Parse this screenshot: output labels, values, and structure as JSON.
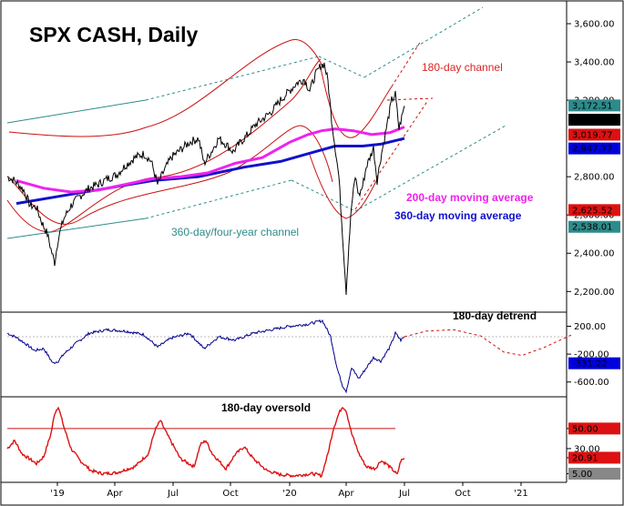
{
  "chart_data": {
    "type": "line",
    "title": "SPX CASH, Daily",
    "x_tick_labels": [
      "'19",
      "Apr",
      "Jul",
      "Oct",
      "'20",
      "Apr",
      "Jul",
      "Oct",
      "'21"
    ],
    "price_panel": {
      "y_ticks": [
        "3,600.00",
        "3,400.00",
        "3,200.00",
        "2,800.00",
        "2,600.00",
        "2,400.00",
        "2,200.00"
      ],
      "y_tick_values": [
        3600,
        3400,
        3200,
        2800,
        2600,
        2400,
        2200
      ],
      "ylim": [
        2130,
        3700
      ],
      "price_series": [
        [
          0,
          2800
        ],
        [
          8,
          2780
        ],
        [
          18,
          2730
        ],
        [
          25,
          2650
        ],
        [
          32,
          2640
        ],
        [
          38,
          2560
        ],
        [
          44,
          2500
        ],
        [
          48,
          2420
        ],
        [
          52,
          2350
        ],
        [
          56,
          2480
        ],
        [
          62,
          2580
        ],
        [
          70,
          2650
        ],
        [
          80,
          2700
        ],
        [
          90,
          2740
        ],
        [
          100,
          2760
        ],
        [
          110,
          2790
        ],
        [
          120,
          2810
        ],
        [
          130,
          2860
        ],
        [
          140,
          2900
        ],
        [
          150,
          2920
        ],
        [
          158,
          2880
        ],
        [
          165,
          2760
        ],
        [
          172,
          2830
        ],
        [
          180,
          2900
        ],
        [
          190,
          2940
        ],
        [
          200,
          2980
        ],
        [
          210,
          3000
        ],
        [
          216,
          2870
        ],
        [
          224,
          2930
        ],
        [
          232,
          3000
        ],
        [
          240,
          2970
        ],
        [
          248,
          2930
        ],
        [
          256,
          2980
        ],
        [
          264,
          3020
        ],
        [
          272,
          3070
        ],
        [
          280,
          3100
        ],
        [
          290,
          3140
        ],
        [
          300,
          3200
        ],
        [
          310,
          3250
        ],
        [
          318,
          3290
        ],
        [
          326,
          3310
        ],
        [
          332,
          3250
        ],
        [
          338,
          3330
        ],
        [
          344,
          3380
        ],
        [
          348,
          3390
        ],
        [
          352,
          3300
        ],
        [
          356,
          3100
        ],
        [
          360,
          2950
        ],
        [
          364,
          2800
        ],
        [
          368,
          2500
        ],
        [
          372,
          2200
        ],
        [
          375,
          2450
        ],
        [
          378,
          2650
        ],
        [
          382,
          2800
        ],
        [
          386,
          2700
        ],
        [
          390,
          2750
        ],
        [
          394,
          2850
        ],
        [
          398,
          2900
        ],
        [
          402,
          2950
        ],
        [
          406,
          2780
        ],
        [
          410,
          2900
        ],
        [
          414,
          3000
        ],
        [
          418,
          3100
        ],
        [
          422,
          3200
        ],
        [
          426,
          3230
        ],
        [
          430,
          3050
        ],
        [
          433,
          3110
        ],
        [
          436,
          3170
        ]
      ],
      "ma200_series": [
        [
          10,
          2780
        ],
        [
          40,
          2740
        ],
        [
          70,
          2720
        ],
        [
          100,
          2730
        ],
        [
          130,
          2760
        ],
        [
          160,
          2790
        ],
        [
          190,
          2800
        ],
        [
          220,
          2820
        ],
        [
          250,
          2870
        ],
        [
          280,
          2900
        ],
        [
          310,
          2980
        ],
        [
          330,
          3020
        ],
        [
          345,
          3040
        ],
        [
          360,
          3050
        ],
        [
          380,
          3040
        ],
        [
          400,
          3020
        ],
        [
          420,
          3030
        ],
        [
          436,
          3060
        ]
      ],
      "ma360_series": [
        [
          10,
          2660
        ],
        [
          60,
          2700
        ],
        [
          110,
          2740
        ],
        [
          160,
          2780
        ],
        [
          210,
          2800
        ],
        [
          260,
          2850
        ],
        [
          300,
          2880
        ],
        [
          330,
          2920
        ],
        [
          360,
          2960
        ],
        [
          390,
          2960
        ],
        [
          410,
          2970
        ],
        [
          436,
          3000
        ]
      ],
      "right_labels": [
        {
          "text": "3,172.51",
          "value": 3172.51,
          "color": "#2e8b8b"
        },
        {
          "text": "3,097.74",
          "value": 3097.74,
          "color": "#000000"
        },
        {
          "text": "3,019.77",
          "value": 3019.77,
          "color": "#dd1111"
        },
        {
          "text": "2,947.77",
          "value": 2947.77,
          "color": "#0000dd"
        },
        {
          "text": "2,625.52",
          "value": 2625.52,
          "color": "#dd1111"
        },
        {
          "text": "2,538.01",
          "value": 2538.01,
          "color": "#2e8b8b"
        }
      ]
    },
    "detrend_panel": {
      "label": "180-day detrend",
      "y_ticks": [
        "200.00",
        "-200.00",
        "-600.00"
      ],
      "y_tick_values": [
        200,
        -200,
        -600
      ],
      "ylim": [
        -760,
        350
      ],
      "detrend_series": [
        [
          0,
          100
        ],
        [
          10,
          40
        ],
        [
          20,
          -50
        ],
        [
          30,
          -150
        ],
        [
          40,
          -120
        ],
        [
          50,
          -330
        ],
        [
          56,
          -300
        ],
        [
          62,
          -200
        ],
        [
          75,
          -50
        ],
        [
          90,
          100
        ],
        [
          110,
          150
        ],
        [
          130,
          130
        ],
        [
          150,
          80
        ],
        [
          165,
          -100
        ],
        [
          180,
          30
        ],
        [
          200,
          100
        ],
        [
          216,
          -120
        ],
        [
          232,
          50
        ],
        [
          250,
          0
        ],
        [
          270,
          100
        ],
        [
          290,
          150
        ],
        [
          310,
          200
        ],
        [
          330,
          230
        ],
        [
          346,
          280
        ],
        [
          355,
          50
        ],
        [
          362,
          -400
        ],
        [
          368,
          -650
        ],
        [
          372,
          -730
        ],
        [
          378,
          -400
        ],
        [
          386,
          -550
        ],
        [
          394,
          -400
        ],
        [
          402,
          -250
        ],
        [
          410,
          -300
        ],
        [
          420,
          -100
        ],
        [
          426,
          100
        ],
        [
          432,
          0
        ],
        [
          436,
          50
        ]
      ],
      "projection_series": [
        [
          436,
          50
        ],
        [
          460,
          130
        ],
        [
          490,
          150
        ],
        [
          520,
          60
        ],
        [
          545,
          -170
        ],
        [
          565,
          -220
        ],
        [
          590,
          -100
        ],
        [
          620,
          80
        ]
      ],
      "right_labels": [
        {
          "text": "-331.22",
          "value": -331.22,
          "color": "#0000dd"
        }
      ]
    },
    "oversold_panel": {
      "label": "180-day oversold",
      "y_ticks": [
        "50.00",
        "30.00",
        "20.91",
        "5.00"
      ],
      "y_tick_values": [
        50,
        30,
        20.91,
        5
      ],
      "ylim": [
        0,
        78
      ],
      "threshold": 50,
      "oversold_series": [
        [
          0,
          30
        ],
        [
          8,
          38
        ],
        [
          16,
          25
        ],
        [
          24,
          20
        ],
        [
          32,
          15
        ],
        [
          40,
          22
        ],
        [
          48,
          45
        ],
        [
          52,
          65
        ],
        [
          56,
          72
        ],
        [
          62,
          52
        ],
        [
          70,
          30
        ],
        [
          80,
          18
        ],
        [
          92,
          8
        ],
        [
          105,
          5
        ],
        [
          120,
          6
        ],
        [
          140,
          12
        ],
        [
          155,
          25
        ],
        [
          162,
          48
        ],
        [
          168,
          58
        ],
        [
          175,
          45
        ],
        [
          190,
          20
        ],
        [
          205,
          12
        ],
        [
          212,
          34
        ],
        [
          218,
          38
        ],
        [
          225,
          25
        ],
        [
          240,
          10
        ],
        [
          250,
          24
        ],
        [
          260,
          32
        ],
        [
          270,
          20
        ],
        [
          285,
          8
        ],
        [
          300,
          4
        ],
        [
          315,
          3
        ],
        [
          335,
          5
        ],
        [
          345,
          3
        ],
        [
          352,
          25
        ],
        [
          358,
          50
        ],
        [
          364,
          65
        ],
        [
          368,
          72
        ],
        [
          372,
          68
        ],
        [
          378,
          45
        ],
        [
          386,
          25
        ],
        [
          394,
          12
        ],
        [
          404,
          10
        ],
        [
          410,
          18
        ],
        [
          416,
          15
        ],
        [
          424,
          8
        ],
        [
          428,
          4
        ],
        [
          432,
          18
        ],
        [
          436,
          20
        ]
      ],
      "right_labels": [
        {
          "text": "50.00",
          "value": 50,
          "color": "#dd1111"
        },
        {
          "text": "20.91",
          "value": 20.91,
          "color": "#dd1111"
        },
        {
          "text": "5.00",
          "value": 5,
          "color": "#888888"
        }
      ]
    },
    "annotations": [
      {
        "text": "180-day channel",
        "color": "#dd2222"
      },
      {
        "text": "200-day moving average",
        "color": "#ee22ee"
      },
      {
        "text": "360-day moving average",
        "color": "#1111cc"
      },
      {
        "text": "360-day/four-year channel",
        "color": "#2e8b8b"
      }
    ],
    "colors": {
      "price": "#000000",
      "ma200": "#ee22ee",
      "ma360": "#1111cc",
      "channel180": "#cc1111",
      "channel360": "#2e8b8b",
      "detrend": "#000088",
      "oversold": "#dd1111"
    }
  }
}
